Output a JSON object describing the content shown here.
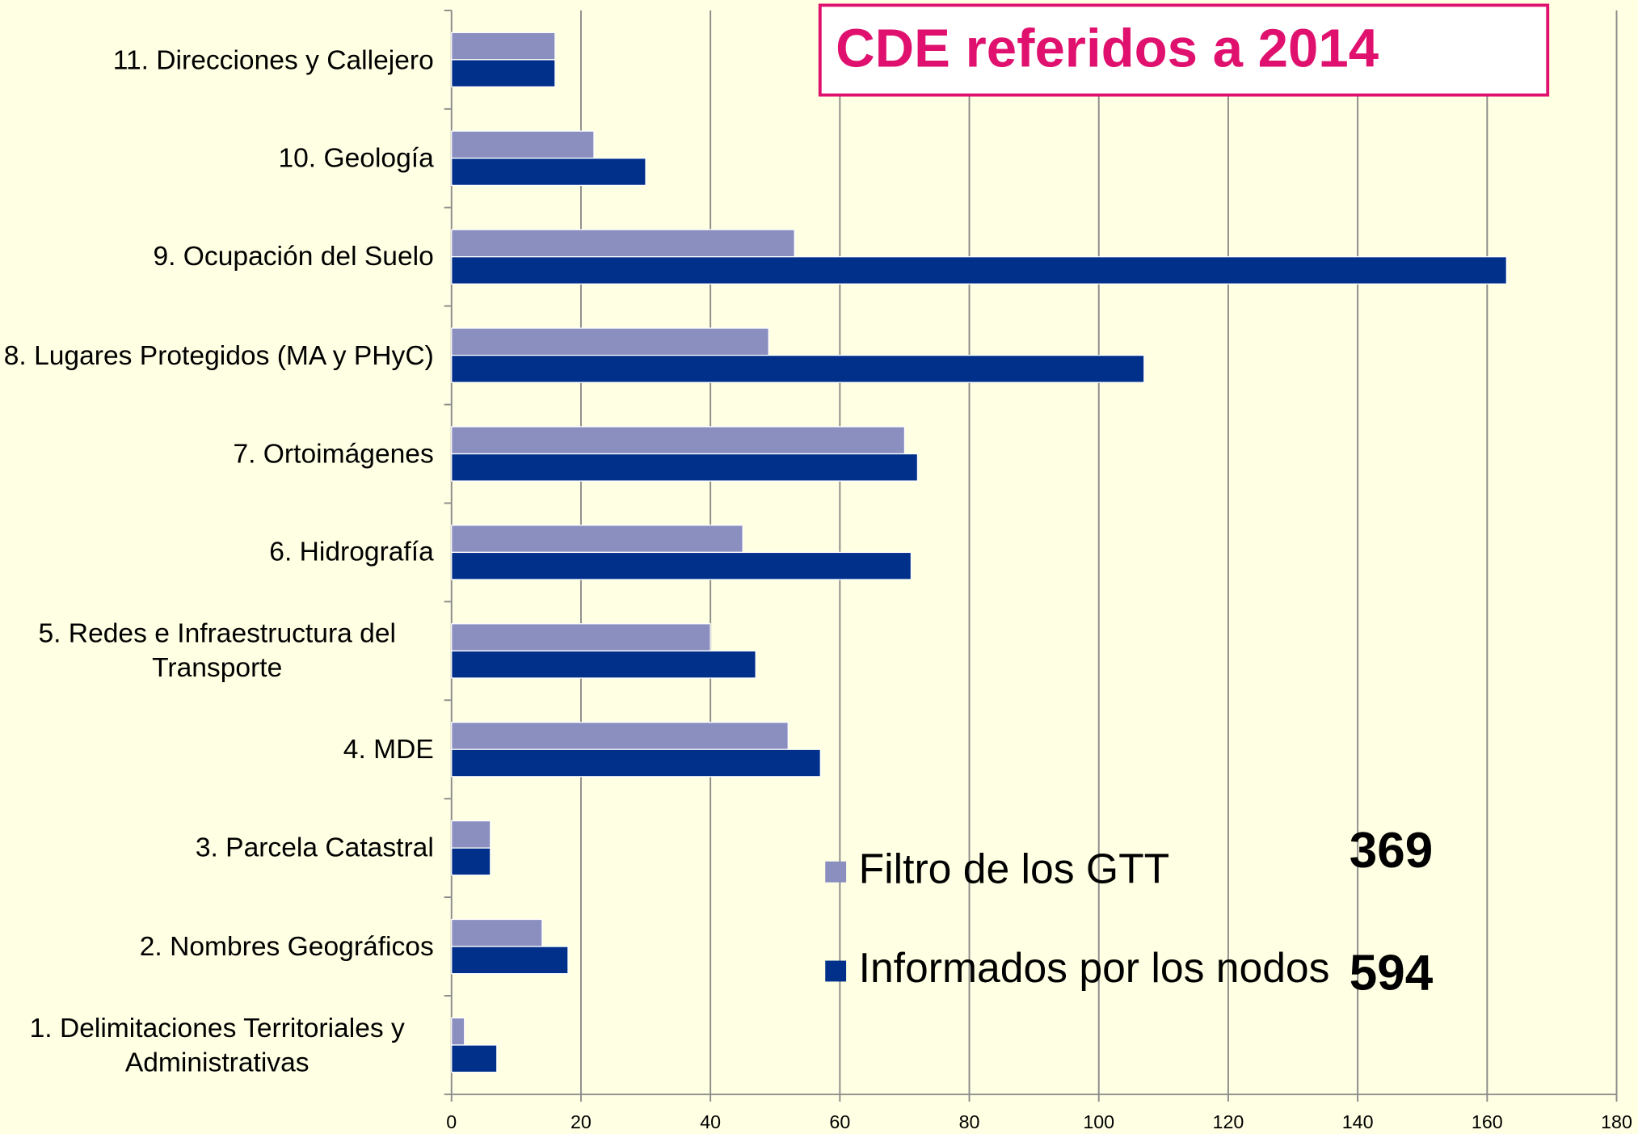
{
  "chart_data": {
    "type": "bar",
    "orientation": "horizontal",
    "title": "CDE referidos a 2014",
    "categories": [
      "1. Delimitaciones Territoriales y Administrativas",
      "2. Nombres Geográficos",
      "3. Parcela Catastral",
      "4. MDE",
      "5. Redes e Infraestructura del Transporte",
      "6. Hidrografía",
      "7. Ortoimágenes",
      "8. Lugares Protegidos (MA y PHyC)",
      "9. Ocupación del Suelo",
      "10. Geología",
      "11. Direcciones y Callejero"
    ],
    "series": [
      {
        "name": "Filtro de los GTT",
        "color": "#8A8FC0",
        "values": [
          2,
          14,
          6,
          52,
          40,
          45,
          70,
          49,
          53,
          22,
          16
        ]
      },
      {
        "name": "Informados por los nodos",
        "color": "#00308A",
        "values": [
          7,
          18,
          6,
          57,
          47,
          71,
          72,
          107,
          163,
          30,
          16
        ]
      }
    ],
    "annotations": [
      "369",
      "594"
    ],
    "xlim": [
      0,
      180
    ],
    "xticks": [
      0,
      20,
      40,
      60,
      80,
      100,
      120,
      140,
      160,
      180
    ],
    "grid": true
  }
}
